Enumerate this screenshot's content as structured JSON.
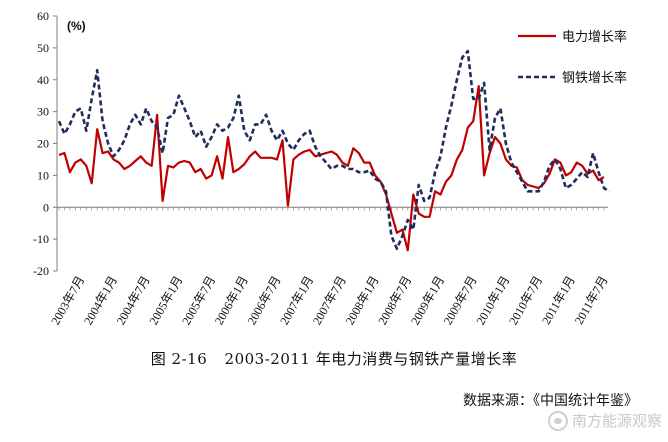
{
  "chart_data": {
    "type": "line",
    "unit_label": "(%)",
    "ylim": [
      -20,
      60
    ],
    "yticks": [
      -20,
      -10,
      0,
      10,
      20,
      30,
      40,
      50,
      60
    ],
    "x_tick_labels": [
      "2003年7月",
      "2004年1月",
      "2004年7月",
      "2005年1月",
      "2005年7月",
      "2006年1月",
      "2006年7月",
      "2007年1月",
      "2007年7月",
      "2008年1月",
      "2008年7月",
      "2009年1月",
      "2009年7月",
      "2010年1月",
      "2010年7月",
      "2011年1月",
      "2011年7月"
    ],
    "x_start": "2003年3月",
    "legend_position": "top-right",
    "series": [
      {
        "name": "电力增长率",
        "color": "#c00000",
        "style": "solid",
        "values": [
          16.4,
          17,
          11,
          14,
          15,
          13,
          7.5,
          24.5,
          17,
          17.5,
          15,
          14,
          12,
          13,
          14.5,
          16,
          14,
          13,
          29,
          2,
          13,
          12.5,
          14,
          14.5,
          14,
          11,
          12,
          9,
          10,
          16,
          9,
          22,
          11,
          12,
          13.5,
          16,
          17.5,
          15.5,
          15.5,
          15.5,
          15,
          21,
          0.5,
          15,
          16.5,
          17.5,
          18,
          16,
          16.5,
          17,
          17.5,
          16.5,
          14,
          13,
          18.5,
          17,
          14,
          14,
          10,
          8,
          4,
          -2,
          -8,
          -7,
          -13.5,
          4,
          -2,
          -3,
          -3,
          5,
          4,
          8,
          10,
          15,
          18,
          25,
          27,
          38,
          10,
          17,
          22,
          20,
          15,
          13,
          12.5,
          8.5,
          7,
          6.5,
          6,
          7.5,
          10.5,
          15,
          14,
          10,
          11,
          14,
          13,
          10.5,
          11.5,
          8.5,
          9.5
        ]
      },
      {
        "name": "钢铁增长率",
        "color": "#1f2d5a",
        "style": "dashed",
        "values": [
          27,
          23,
          26,
          30,
          31,
          24,
          34,
          43,
          27,
          20,
          16,
          18,
          21,
          26,
          29,
          26,
          31,
          27,
          25,
          17,
          28,
          29,
          35,
          31,
          27,
          22,
          24,
          19,
          22,
          26,
          24,
          25,
          28,
          35,
          24,
          21,
          26,
          26,
          29,
          24,
          21,
          24,
          20,
          18,
          21,
          23,
          24,
          19,
          16,
          14,
          12,
          13,
          13,
          12,
          12,
          11,
          11,
          11.5,
          9,
          8,
          5,
          -9,
          -13,
          -9,
          -4,
          -7,
          7,
          2,
          3,
          11,
          16,
          25,
          32,
          40,
          47,
          49,
          34,
          34,
          39,
          18,
          28,
          31,
          20,
          14,
          11,
          8,
          5,
          5,
          5,
          8,
          13,
          15,
          12,
          6,
          7,
          9,
          11,
          9.5,
          17,
          11,
          6,
          5
        ]
      }
    ]
  },
  "caption": {
    "figure_number": "图 2-16",
    "title": "2003-2011 年电力消费与钢铁产量增长率"
  },
  "source": "数据来源：《中国统计年鉴》",
  "watermark": "南方能源观察",
  "colors": {
    "axis": "#7f7f7f",
    "tick_text": "#111111"
  }
}
